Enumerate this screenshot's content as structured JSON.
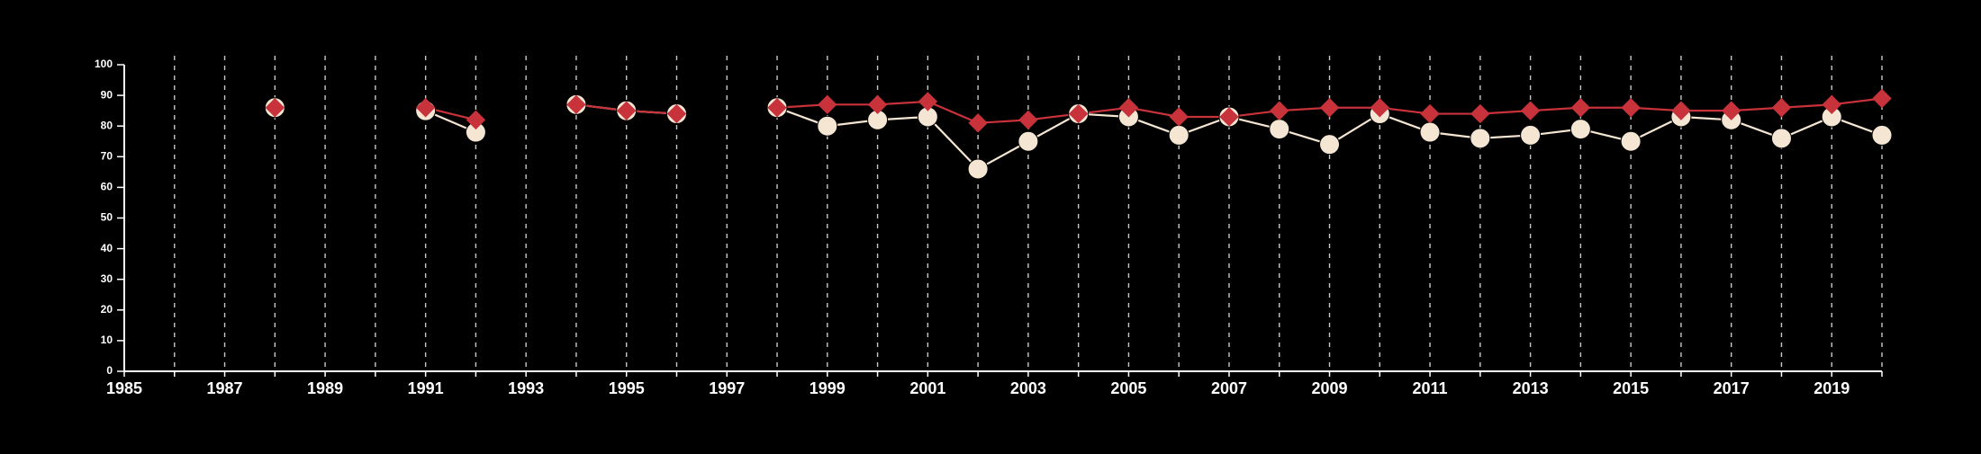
{
  "chart_data": {
    "type": "line",
    "title": "",
    "xlabel": "",
    "ylabel": "",
    "xlim": [
      1985,
      2020
    ],
    "ylim": [
      0,
      100
    ],
    "x_ticks": [
      "1985",
      "1987",
      "1989",
      "1991",
      "1993",
      "1995",
      "1997",
      "1999",
      "2001",
      "2003",
      "2005",
      "2007",
      "2009",
      "2011",
      "2013",
      "2015",
      "2017",
      "2019"
    ],
    "y_ticks": [
      "0",
      "10",
      "20",
      "30",
      "40",
      "50",
      "60",
      "70",
      "80",
      "90",
      "100"
    ],
    "vertical_dashed_grid_years": [
      1986,
      1987,
      1988,
      1989,
      1990,
      1991,
      1992,
      1993,
      1994,
      1995,
      1996,
      1997,
      1998,
      1999,
      2000,
      2001,
      2002,
      2003,
      2004,
      2005,
      2006,
      2007,
      2008,
      2009,
      2010,
      2011,
      2012,
      2013,
      2014,
      2015,
      2016,
      2017,
      2018,
      2019,
      2020
    ],
    "series": [
      {
        "color": "#f5e6d3",
        "marker": "circle",
        "points": [
          {
            "x": 1988,
            "y": 86
          },
          {
            "x": 1991,
            "y": 85
          },
          {
            "x": 1992,
            "y": 78
          },
          {
            "x": 1994,
            "y": 87
          },
          {
            "x": 1995,
            "y": 85
          },
          {
            "x": 1996,
            "y": 84
          },
          {
            "x": 1998,
            "y": 86
          },
          {
            "x": 1999,
            "y": 80
          },
          {
            "x": 2000,
            "y": 82
          },
          {
            "x": 2001,
            "y": 83
          },
          {
            "x": 2002,
            "y": 66
          },
          {
            "x": 2003,
            "y": 75
          },
          {
            "x": 2004,
            "y": 84
          },
          {
            "x": 2005,
            "y": 83
          },
          {
            "x": 2006,
            "y": 77
          },
          {
            "x": 2007,
            "y": 83
          },
          {
            "x": 2008,
            "y": 79
          },
          {
            "x": 2009,
            "y": 74
          },
          {
            "x": 2010,
            "y": 84
          },
          {
            "x": 2011,
            "y": 78
          },
          {
            "x": 2012,
            "y": 76
          },
          {
            "x": 2013,
            "y": 77
          },
          {
            "x": 2014,
            "y": 79
          },
          {
            "x": 2015,
            "y": 75
          },
          {
            "x": 2016,
            "y": 83
          },
          {
            "x": 2017,
            "y": 82
          },
          {
            "x": 2018,
            "y": 76
          },
          {
            "x": 2019,
            "y": 83
          },
          {
            "x": 2020,
            "y": 77
          }
        ]
      },
      {
        "color": "#c8323a",
        "marker": "diamond",
        "points": [
          {
            "x": 1988,
            "y": 86
          },
          {
            "x": 1991,
            "y": 86
          },
          {
            "x": 1992,
            "y": 82
          },
          {
            "x": 1994,
            "y": 87
          },
          {
            "x": 1995,
            "y": 85
          },
          {
            "x": 1996,
            "y": 84
          },
          {
            "x": 1998,
            "y": 86
          },
          {
            "x": 1999,
            "y": 87
          },
          {
            "x": 2000,
            "y": 87
          },
          {
            "x": 2001,
            "y": 88
          },
          {
            "x": 2002,
            "y": 81
          },
          {
            "x": 2003,
            "y": 82
          },
          {
            "x": 2004,
            "y": 84
          },
          {
            "x": 2005,
            "y": 86
          },
          {
            "x": 2006,
            "y": 83
          },
          {
            "x": 2007,
            "y": 83
          },
          {
            "x": 2008,
            "y": 85
          },
          {
            "x": 2009,
            "y": 86
          },
          {
            "x": 2010,
            "y": 86
          },
          {
            "x": 2011,
            "y": 84
          },
          {
            "x": 2012,
            "y": 84
          },
          {
            "x": 2013,
            "y": 85
          },
          {
            "x": 2014,
            "y": 86
          },
          {
            "x": 2015,
            "y": 86
          },
          {
            "x": 2016,
            "y": 85
          },
          {
            "x": 2017,
            "y": 85
          },
          {
            "x": 2018,
            "y": 86
          },
          {
            "x": 2019,
            "y": 87
          },
          {
            "x": 2020,
            "y": 89
          }
        ]
      }
    ],
    "grid": {
      "vertical": true,
      "horizontal": false,
      "style": "dashed",
      "color": "#c8c8c8"
    },
    "legend": "none",
    "axis_color": "#ffffff",
    "background": "#000000"
  }
}
